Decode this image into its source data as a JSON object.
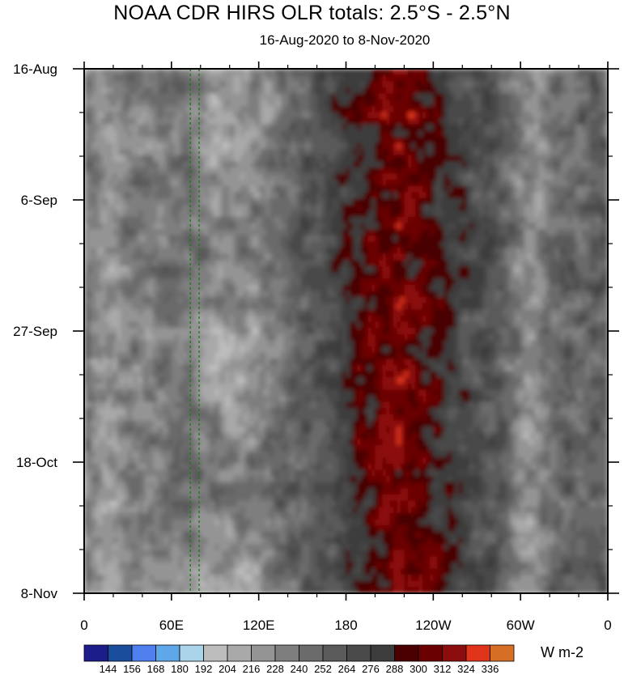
{
  "chart_data": {
    "type": "heatmap",
    "title": "NOAA CDR HIRS OLR totals: 2.5°S - 2.5°N",
    "subtitle": "16-Aug-2020 to 8-Nov-2020",
    "x_ticks": [
      "0",
      "60E",
      "120E",
      "180",
      "120W",
      "60W",
      "0"
    ],
    "x_tick_lon": [
      0,
      60,
      120,
      180,
      240,
      300,
      360
    ],
    "xlim": [
      0,
      360
    ],
    "y_ticks": [
      "16-Aug",
      "6-Sep",
      "27-Sep",
      "18-Oct",
      "8-Nov"
    ],
    "y_tick_day": [
      0,
      21,
      42,
      63,
      84
    ],
    "ylim_days": [
      0,
      84
    ],
    "colorbar": {
      "levels": [
        144,
        156,
        168,
        180,
        192,
        204,
        216,
        228,
        240,
        252,
        264,
        276,
        288,
        300,
        312,
        324,
        336
      ],
      "colors": [
        "#1c1c8a",
        "#1a4e9c",
        "#4f7fef",
        "#5ea8ea",
        "#aad4ea",
        "#bdbdbd",
        "#a9a9a9",
        "#949494",
        "#7e7e7e",
        "#6b6b6b",
        "#5a5a5a",
        "#4a4a4a",
        "#3c3c3c",
        "#4a0000",
        "#6a0000",
        "#8c0d0d",
        "#e0341a",
        "#d66e26"
      ],
      "units": "W m-2"
    },
    "reference_lines_lon": [
      73,
      79
    ],
    "description_bands": [
      {
        "lon_range": [
          5,
          30
        ],
        "typical_olr": 215
      },
      {
        "lon_range": [
          60,
          145
        ],
        "typical_olr": 205
      },
      {
        "lon_range": [
          180,
          255
        ],
        "typical_olr": 305
      },
      {
        "lon_range": [
          290,
          320
        ],
        "typical_olr": 220
      }
    ]
  }
}
